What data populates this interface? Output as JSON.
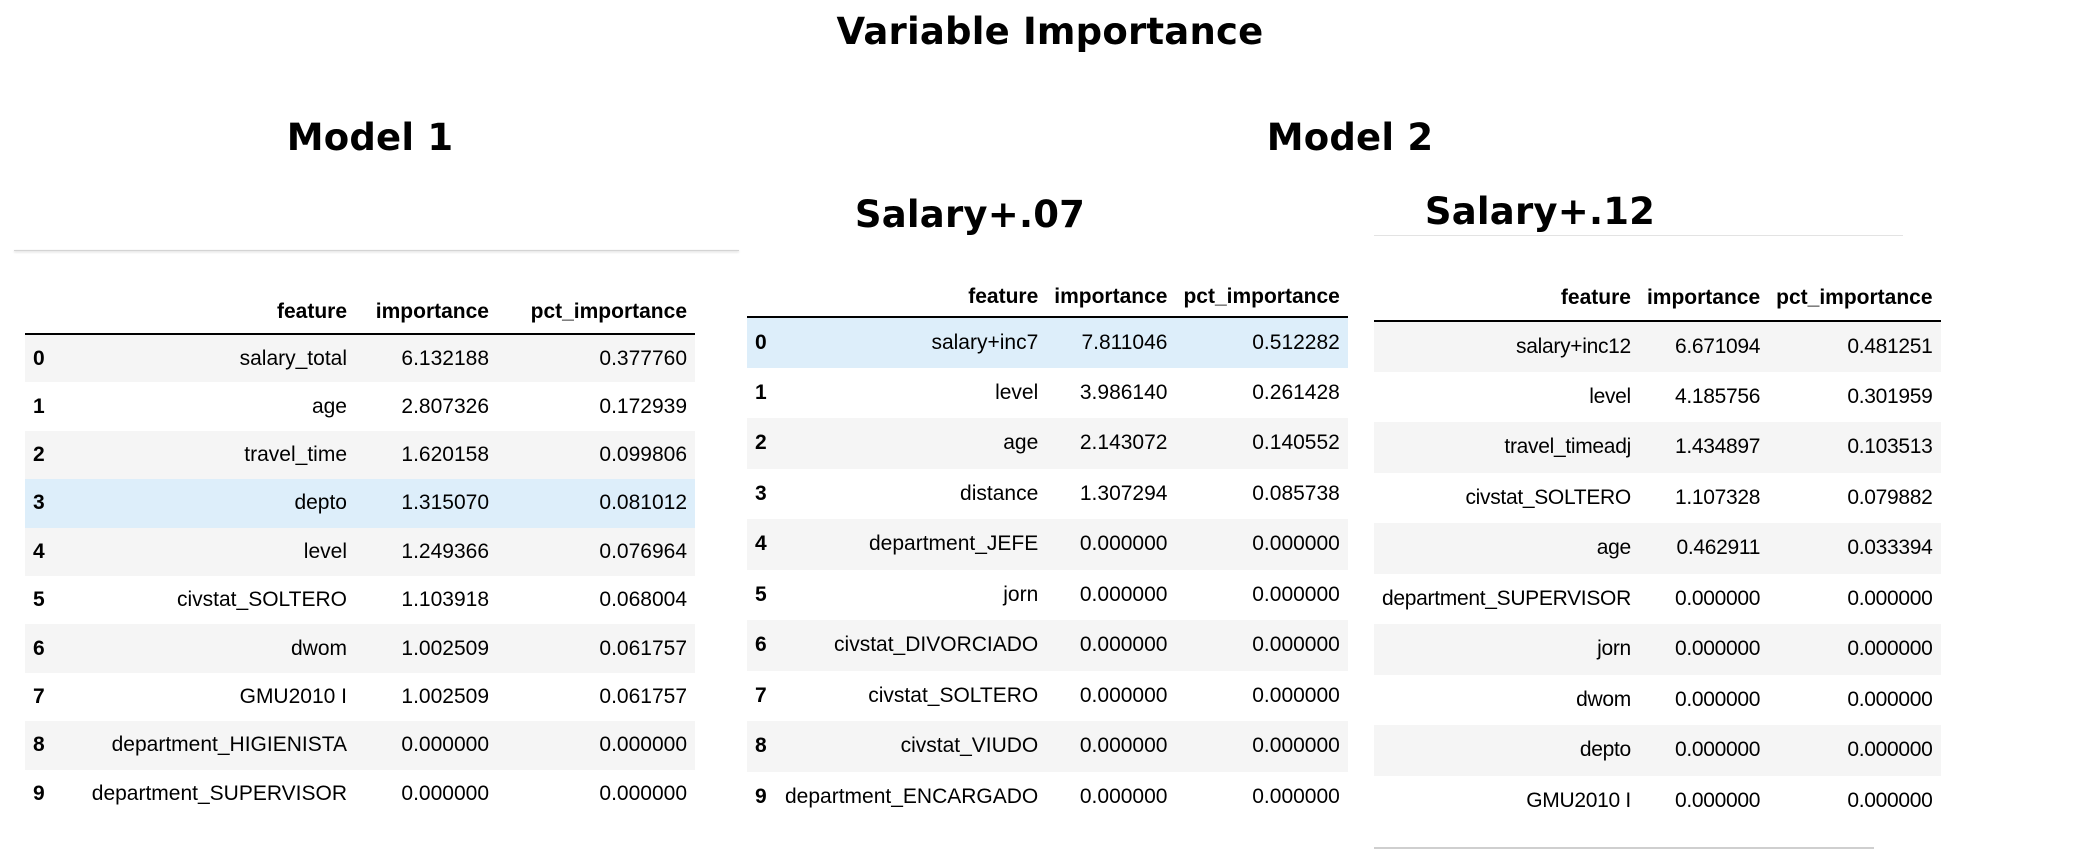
{
  "title": "Variable Importance",
  "model1": {
    "title": "Model 1",
    "columns": [
      "feature",
      "importance",
      "pct_importance"
    ],
    "rows": [
      {
        "index": "0",
        "feature": "salary_total",
        "importance": "6.132188",
        "pct_importance": "0.377760"
      },
      {
        "index": "1",
        "feature": "age",
        "importance": "2.807326",
        "pct_importance": "0.172939"
      },
      {
        "index": "2",
        "feature": "travel_time",
        "importance": "1.620158",
        "pct_importance": "0.099806"
      },
      {
        "index": "3",
        "feature": "depto",
        "importance": "1.315070",
        "pct_importance": "0.081012"
      },
      {
        "index": "4",
        "feature": "level",
        "importance": "1.249366",
        "pct_importance": "0.076964"
      },
      {
        "index": "5",
        "feature": "civstat_SOLTERO",
        "importance": "1.103918",
        "pct_importance": "0.068004"
      },
      {
        "index": "6",
        "feature": "dwom",
        "importance": "1.002509",
        "pct_importance": "0.061757"
      },
      {
        "index": "7",
        "feature": "GMU2010 I",
        "importance": "1.002509",
        "pct_importance": "0.061757"
      },
      {
        "index": "8",
        "feature": "department_HIGIENISTA",
        "importance": "0.000000",
        "pct_importance": "0.000000"
      },
      {
        "index": "9",
        "feature": "department_SUPERVISOR",
        "importance": "0.000000",
        "pct_importance": "0.000000"
      }
    ]
  },
  "model2": {
    "title": "Model 2",
    "salary07": {
      "title": "Salary+.07",
      "columns": [
        "feature",
        "importance",
        "pct_importance"
      ],
      "rows": [
        {
          "index": "0",
          "feature": "salary+inc7",
          "importance": "7.811046",
          "pct_importance": "0.512282"
        },
        {
          "index": "1",
          "feature": "level",
          "importance": "3.986140",
          "pct_importance": "0.261428"
        },
        {
          "index": "2",
          "feature": "age",
          "importance": "2.143072",
          "pct_importance": "0.140552"
        },
        {
          "index": "3",
          "feature": "distance",
          "importance": "1.307294",
          "pct_importance": "0.085738"
        },
        {
          "index": "4",
          "feature": "department_JEFE",
          "importance": "0.000000",
          "pct_importance": "0.000000"
        },
        {
          "index": "5",
          "feature": "jorn",
          "importance": "0.000000",
          "pct_importance": "0.000000"
        },
        {
          "index": "6",
          "feature": "civstat_DIVORCIADO",
          "importance": "0.000000",
          "pct_importance": "0.000000"
        },
        {
          "index": "7",
          "feature": "civstat_SOLTERO",
          "importance": "0.000000",
          "pct_importance": "0.000000"
        },
        {
          "index": "8",
          "feature": "civstat_VIUDO",
          "importance": "0.000000",
          "pct_importance": "0.000000"
        },
        {
          "index": "9",
          "feature": "department_ENCARGADO",
          "importance": "0.000000",
          "pct_importance": "0.000000"
        }
      ]
    },
    "salary12": {
      "title": "Salary+.12",
      "columns": [
        "feature",
        "importance",
        "pct_importance"
      ],
      "rows": [
        {
          "feature": "salary+inc12",
          "importance": "6.671094",
          "pct_importance": "0.481251"
        },
        {
          "feature": "level",
          "importance": "4.185756",
          "pct_importance": "0.301959"
        },
        {
          "feature": "travel_timeadj",
          "importance": "1.434897",
          "pct_importance": "0.103513"
        },
        {
          "feature": "civstat_SOLTERO",
          "importance": "1.107328",
          "pct_importance": "0.079882"
        },
        {
          "feature": "age",
          "importance": "0.462911",
          "pct_importance": "0.033394"
        },
        {
          "feature": "department_SUPERVISOR",
          "importance": "0.000000",
          "pct_importance": "0.000000"
        },
        {
          "feature": "jorn",
          "importance": "0.000000",
          "pct_importance": "0.000000"
        },
        {
          "feature": "dwom",
          "importance": "0.000000",
          "pct_importance": "0.000000"
        },
        {
          "feature": "depto",
          "importance": "0.000000",
          "pct_importance": "0.000000"
        },
        {
          "feature": "GMU2010 I",
          "importance": "0.000000",
          "pct_importance": "0.000000"
        }
      ]
    }
  }
}
